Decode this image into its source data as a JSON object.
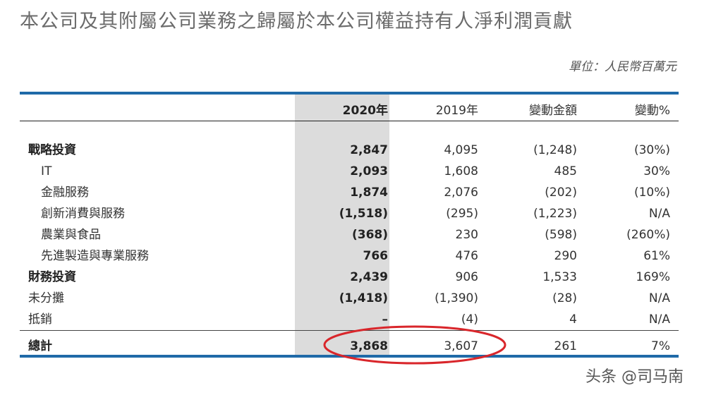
{
  "title": "本公司及其附屬公司業務之歸屬於本公司權益持有人淨利潤貢獻",
  "unit": "單位：人民幣百萬元",
  "columns": [
    "2020年",
    "2019年",
    "變動金額",
    "變動%"
  ],
  "rows": [
    {
      "label": "戰略投資",
      "y2020": "2,847",
      "y2019": "4,095",
      "change": "(1,248)",
      "pct": "(30%)",
      "bold": true,
      "indent": false
    },
    {
      "label": "IT",
      "y2020": "2,093",
      "y2019": "1,608",
      "change": "485",
      "pct": "30%",
      "bold": false,
      "indent": true
    },
    {
      "label": "金融服務",
      "y2020": "1,874",
      "y2019": "2,076",
      "change": "(202)",
      "pct": "(10%)",
      "bold": false,
      "indent": true
    },
    {
      "label": "創新消費與服務",
      "y2020": "(1,518)",
      "y2019": "(295)",
      "change": "(1,223)",
      "pct": "N/A",
      "bold": false,
      "indent": true
    },
    {
      "label": "農業與食品",
      "y2020": "(368)",
      "y2019": "230",
      "change": "(598)",
      "pct": "(260%)",
      "bold": false,
      "indent": true
    },
    {
      "label": "先進製造與專業服務",
      "y2020": "766",
      "y2019": "476",
      "change": "290",
      "pct": "61%",
      "bold": false,
      "indent": true
    },
    {
      "label": "財務投資",
      "y2020": "2,439",
      "y2019": "906",
      "change": "1,533",
      "pct": "169%",
      "bold": true,
      "indent": false
    },
    {
      "label": "未分攤",
      "y2020": "(1,418)",
      "y2019": "(1,390)",
      "change": "(28)",
      "pct": "N/A",
      "bold": false,
      "indent": false
    },
    {
      "label": "抵銷",
      "y2020": "–",
      "y2019": "(4)",
      "change": "4",
      "pct": "N/A",
      "bold": false,
      "indent": false
    }
  ],
  "total": {
    "label": "總計",
    "y2020": "3,868",
    "y2019": "3,607",
    "change": "261",
    "pct": "7%"
  },
  "watermark": "头条 @司马南",
  "colors": {
    "rule": "#1f6aa8",
    "shade": "#dcdcdc",
    "circle": "#d9262b"
  }
}
